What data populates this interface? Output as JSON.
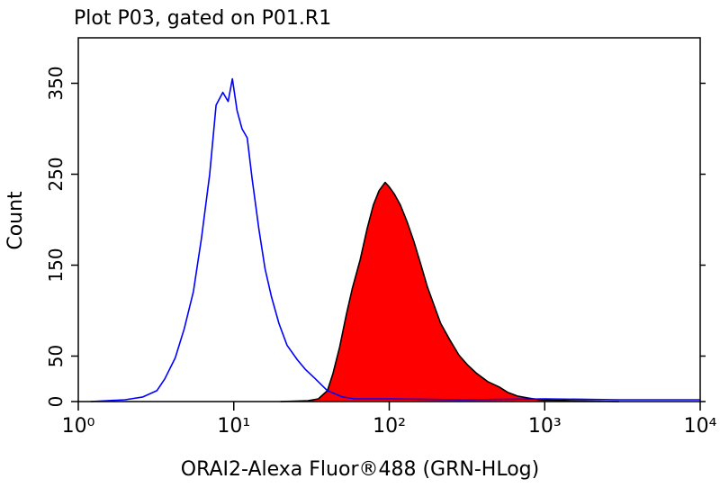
{
  "chart_data": {
    "type": "line",
    "title": "Plot P03, gated on P01.R1",
    "x_label": "ORAI2-Alexa Fluor®488 (GRN-HLog)",
    "y_label": "Count",
    "log_x": true,
    "xlim": [
      1,
      10000
    ],
    "xticks": [
      {
        "value": 1,
        "label": "10⁰"
      },
      {
        "value": 10,
        "label": "10¹"
      },
      {
        "value": 100,
        "label": "10²"
      },
      {
        "value": 1000,
        "label": "10³"
      },
      {
        "value": 10000,
        "label": "10⁴"
      }
    ],
    "ylim": [
      0,
      400
    ],
    "yticks": [
      0,
      50,
      150,
      250,
      350
    ],
    "series": [
      {
        "color": "#000000",
        "fill": "#ff0000",
        "x": [
          20,
          30,
          35,
          40,
          43.5,
          48,
          53,
          58,
          65,
          72,
          79,
          86,
          94,
          100,
          108,
          118,
          130,
          144,
          160,
          176,
          195,
          214,
          245,
          281,
          320,
          365,
          430,
          510,
          580,
          668,
          780,
          930,
          1500,
          3000
        ],
        "values": [
          0,
          1,
          3,
          12,
          31,
          60,
          96,
          125,
          156,
          190,
          216,
          232,
          241,
          236,
          228,
          216,
          198,
          176,
          150,
          126,
          105,
          86,
          68,
          51,
          40,
          31,
          22,
          16,
          10,
          6,
          4,
          2,
          1,
          0
        ]
      },
      {
        "color": "#0000ff",
        "x": [
          1.2,
          2,
          2.6,
          3.2,
          3.6,
          4.2,
          4.8,
          5.5,
          6.2,
          7,
          7.7,
          8.5,
          9.2,
          9.8,
          10.5,
          11.3,
          12.2,
          13.1,
          14.5,
          15.9,
          17.5,
          19.5,
          22,
          25.6,
          29,
          33,
          40,
          50,
          60,
          100,
          300,
          1000,
          3000,
          10000
        ],
        "values": [
          0,
          2,
          5,
          12,
          25,
          48,
          80,
          121,
          180,
          250,
          326,
          340,
          330,
          355,
          320,
          300,
          290,
          246,
          190,
          146,
          115,
          86,
          62,
          46,
          35,
          26,
          12,
          5,
          3,
          3,
          2,
          3,
          2,
          2
        ]
      }
    ]
  }
}
